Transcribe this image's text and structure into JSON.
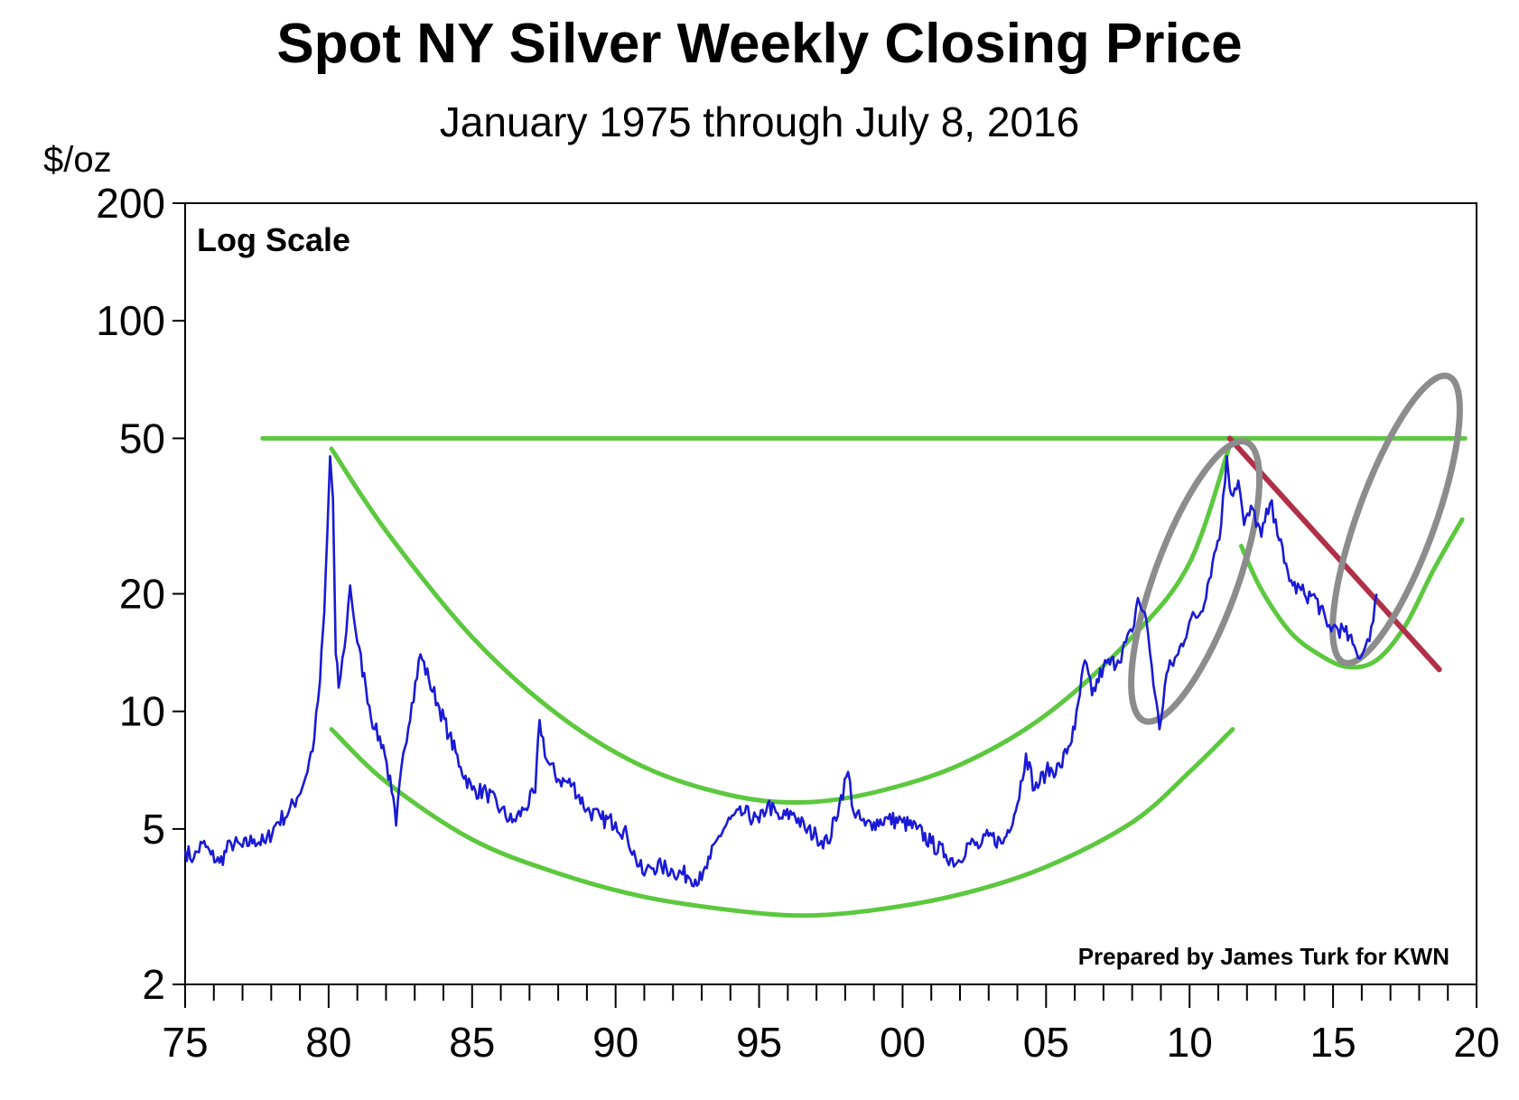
{
  "chart_data": {
    "type": "line",
    "title": "Spot NY Silver Weekly Closing Price",
    "subtitle": "January 1975 through July 8, 2016",
    "ylabel": "$/oz",
    "scale_note": "Log Scale",
    "credit": "Prepared by James Turk for KWN",
    "y_scale": "log",
    "ylim": [
      2,
      200
    ],
    "xlim": [
      1975,
      2020
    ],
    "y_ticks": [
      {
        "value": 200,
        "label": "200"
      },
      {
        "value": 100,
        "label": "100"
      },
      {
        "value": 50,
        "label": "50"
      },
      {
        "value": 20,
        "label": "20"
      },
      {
        "value": 10,
        "label": "10"
      },
      {
        "value": 5,
        "label": "5"
      },
      {
        "value": 2,
        "label": "2"
      }
    ],
    "x_ticks": [
      {
        "value": 1975,
        "label": "75"
      },
      {
        "value": 1980,
        "label": "80"
      },
      {
        "value": 1985,
        "label": "85"
      },
      {
        "value": 1990,
        "label": "90"
      },
      {
        "value": 1995,
        "label": "95"
      },
      {
        "value": 2000,
        "label": "00"
      },
      {
        "value": 2005,
        "label": "05"
      },
      {
        "value": 2010,
        "label": "10"
      },
      {
        "value": 2015,
        "label": "15"
      },
      {
        "value": 2020,
        "label": "20"
      }
    ],
    "series": [
      {
        "name": "Silver weekly close",
        "color": "#1a1ad6",
        "points": [
          [
            1975.0,
            4.4
          ],
          [
            1975.3,
            4.2
          ],
          [
            1975.6,
            4.6
          ],
          [
            1975.9,
            4.3
          ],
          [
            1976.2,
            4.1
          ],
          [
            1976.6,
            4.6
          ],
          [
            1977.0,
            4.5
          ],
          [
            1977.4,
            4.7
          ],
          [
            1977.8,
            4.6
          ],
          [
            1978.2,
            5.2
          ],
          [
            1978.6,
            5.5
          ],
          [
            1978.9,
            6.0
          ],
          [
            1979.2,
            6.8
          ],
          [
            1979.5,
            8.5
          ],
          [
            1979.7,
            12.0
          ],
          [
            1979.85,
            18.0
          ],
          [
            1979.95,
            28.0
          ],
          [
            1980.05,
            45.0
          ],
          [
            1980.15,
            35.0
          ],
          [
            1980.25,
            14.0
          ],
          [
            1980.35,
            11.5
          ],
          [
            1980.55,
            14.5
          ],
          [
            1980.75,
            21.0
          ],
          [
            1981.0,
            15.0
          ],
          [
            1981.3,
            11.5
          ],
          [
            1981.6,
            9.0
          ],
          [
            1981.9,
            8.2
          ],
          [
            1982.2,
            6.2
          ],
          [
            1982.35,
            5.1
          ],
          [
            1982.6,
            7.8
          ],
          [
            1982.9,
            10.5
          ],
          [
            1983.2,
            14.0
          ],
          [
            1983.5,
            12.0
          ],
          [
            1983.8,
            10.5
          ],
          [
            1984.2,
            8.7
          ],
          [
            1984.6,
            7.2
          ],
          [
            1985.0,
            6.3
          ],
          [
            1985.5,
            6.2
          ],
          [
            1986.0,
            5.6
          ],
          [
            1986.4,
            5.2
          ],
          [
            1986.8,
            5.6
          ],
          [
            1987.2,
            6.2
          ],
          [
            1987.35,
            9.5
          ],
          [
            1987.6,
            7.5
          ],
          [
            1988.0,
            6.7
          ],
          [
            1988.5,
            6.5
          ],
          [
            1989.0,
            5.6
          ],
          [
            1989.5,
            5.3
          ],
          [
            1990.0,
            5.2
          ],
          [
            1990.4,
            4.8
          ],
          [
            1990.7,
            4.2
          ],
          [
            1991.0,
            3.8
          ],
          [
            1991.2,
            4.0
          ],
          [
            1991.6,
            4.0
          ],
          [
            1992.0,
            3.9
          ],
          [
            1992.5,
            3.8
          ],
          [
            1993.0,
            3.7
          ],
          [
            1993.3,
            4.2
          ],
          [
            1993.6,
            4.8
          ],
          [
            1994.0,
            5.3
          ],
          [
            1994.5,
            5.5
          ],
          [
            1995.0,
            5.2
          ],
          [
            1995.3,
            5.8
          ],
          [
            1995.7,
            5.3
          ],
          [
            1996.2,
            5.5
          ],
          [
            1996.6,
            5.0
          ],
          [
            1997.0,
            4.8
          ],
          [
            1997.4,
            4.6
          ],
          [
            1997.8,
            5.8
          ],
          [
            1998.1,
            7.0
          ],
          [
            1998.3,
            5.5
          ],
          [
            1998.7,
            5.1
          ],
          [
            1999.0,
            5.2
          ],
          [
            1999.5,
            5.3
          ],
          [
            2000.0,
            5.2
          ],
          [
            2000.5,
            5.0
          ],
          [
            2001.0,
            4.6
          ],
          [
            2001.5,
            4.3
          ],
          [
            2001.9,
            4.1
          ],
          [
            2002.3,
            4.6
          ],
          [
            2002.7,
            4.5
          ],
          [
            2003.0,
            4.8
          ],
          [
            2003.5,
            4.6
          ],
          [
            2004.0,
            5.8
          ],
          [
            2004.3,
            7.8
          ],
          [
            2004.6,
            6.3
          ],
          [
            2005.0,
            7.0
          ],
          [
            2005.5,
            7.2
          ],
          [
            2006.0,
            9.0
          ],
          [
            2006.35,
            13.5
          ],
          [
            2006.6,
            11.0
          ],
          [
            2007.0,
            13.0
          ],
          [
            2007.5,
            13.5
          ],
          [
            2008.0,
            16.0
          ],
          [
            2008.2,
            19.5
          ],
          [
            2008.5,
            17.0
          ],
          [
            2008.8,
            11.0
          ],
          [
            2008.95,
            9.0
          ],
          [
            2009.2,
            12.5
          ],
          [
            2009.6,
            14.0
          ],
          [
            2010.0,
            17.0
          ],
          [
            2010.4,
            18.0
          ],
          [
            2010.8,
            24.0
          ],
          [
            2011.1,
            30.0
          ],
          [
            2011.3,
            45.0
          ],
          [
            2011.45,
            36.0
          ],
          [
            2011.7,
            39.0
          ],
          [
            2011.9,
            30.0
          ],
          [
            2012.2,
            33.0
          ],
          [
            2012.5,
            28.0
          ],
          [
            2012.8,
            34.0
          ],
          [
            2013.0,
            31.0
          ],
          [
            2013.3,
            24.0
          ],
          [
            2013.6,
            21.0
          ],
          [
            2014.0,
            20.0
          ],
          [
            2014.4,
            19.5
          ],
          [
            2014.8,
            16.5
          ],
          [
            2015.0,
            16.5
          ],
          [
            2015.4,
            16.0
          ],
          [
            2015.8,
            14.3
          ],
          [
            2016.0,
            13.9
          ],
          [
            2016.2,
            15.3
          ],
          [
            2016.4,
            17.0
          ],
          [
            2016.52,
            20.0
          ]
        ]
      }
    ],
    "annotations": [
      {
        "type": "line",
        "name": "resistance-50",
        "color": "#5cc83e",
        "points": [
          [
            1977.7,
            50
          ],
          [
            2019.6,
            50
          ]
        ]
      },
      {
        "type": "curve",
        "name": "upper-cup",
        "color": "#5cc83e",
        "points": [
          [
            1980.1,
            47
          ],
          [
            1982,
            29
          ],
          [
            1985,
            15.5
          ],
          [
            1988,
            9.8
          ],
          [
            1991,
            7.2
          ],
          [
            1994,
            6.1
          ],
          [
            1996.5,
            5.85
          ],
          [
            1999,
            6.2
          ],
          [
            2002,
            7.3
          ],
          [
            2005,
            9.8
          ],
          [
            2008,
            15.5
          ],
          [
            2010,
            24
          ],
          [
            2011.4,
            48
          ]
        ]
      },
      {
        "type": "curve",
        "name": "lower-cup",
        "color": "#5cc83e",
        "points": [
          [
            1980.1,
            9.0
          ],
          [
            1982,
            6.6
          ],
          [
            1985,
            4.7
          ],
          [
            1988,
            3.85
          ],
          [
            1991,
            3.35
          ],
          [
            1994,
            3.1
          ],
          [
            1996.5,
            3.0
          ],
          [
            1999,
            3.1
          ],
          [
            2002,
            3.4
          ],
          [
            2005,
            4.0
          ],
          [
            2008,
            5.2
          ],
          [
            2010,
            7.0
          ],
          [
            2011.5,
            9.0
          ]
        ]
      },
      {
        "type": "curve",
        "name": "handle",
        "color": "#5cc83e",
        "points": [
          [
            2011.8,
            26.5
          ],
          [
            2012.5,
            20.5
          ],
          [
            2013.5,
            16.0
          ],
          [
            2014.5,
            14.0
          ],
          [
            2015.5,
            13.0
          ],
          [
            2016.5,
            13.5
          ],
          [
            2017.5,
            16.5
          ],
          [
            2018.5,
            23.0
          ],
          [
            2019.5,
            31.0
          ]
        ]
      },
      {
        "type": "line",
        "name": "downtrend",
        "color": "#b03048",
        "points": [
          [
            2011.4,
            50
          ],
          [
            2018.7,
            12.8
          ]
        ]
      },
      {
        "type": "ellipse",
        "name": "circle-2008-2011",
        "color": "#8c8c8c",
        "center": [
          2010.2,
          21.5
        ],
        "ry_decades": 0.38,
        "rx_years": 1.45,
        "tilt_deg": 20
      },
      {
        "type": "ellipse",
        "name": "circle-2015-2019",
        "color": "#8c8c8c",
        "center": [
          2017.2,
          31.0
        ],
        "ry_decades": 0.39,
        "rx_years": 1.35,
        "tilt_deg": 20
      }
    ]
  }
}
